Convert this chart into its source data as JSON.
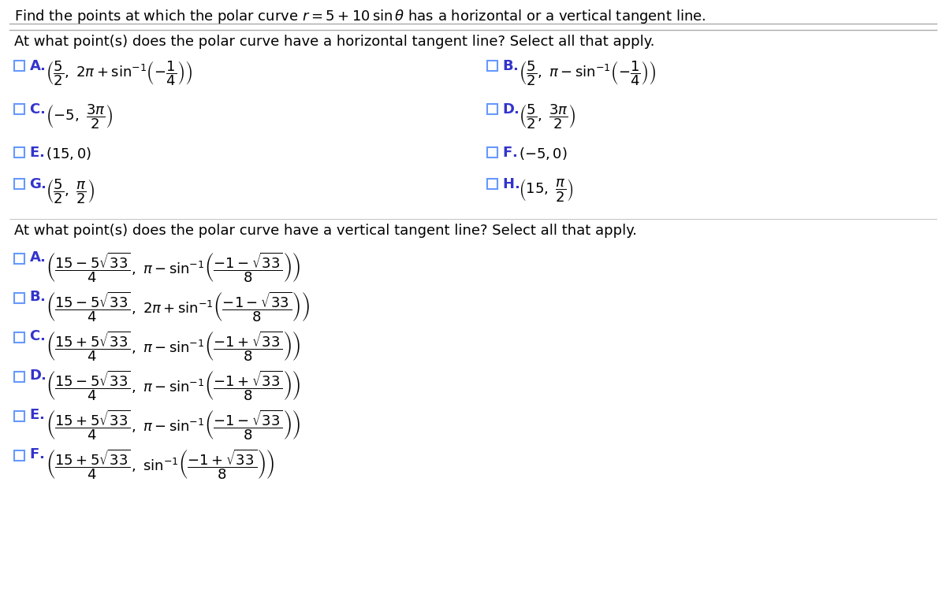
{
  "title_line": "Find the points at which the polar curve r = 5 + 10 sin θ has a horizontal or a vertical tangent line.",
  "horiz_question": "At what point(s) does the polar curve have a horizontal tangent line? Select all that apply.",
  "vert_question": "At what point(s) does the polar curve have a vertical tangent line? Select all that apply.",
  "background_color": "#ffffff",
  "text_color": "#000000",
  "checkbox_color": "#6699ff",
  "label_color": "#3333cc",
  "math_color": "#000000",
  "fig_width": 12.0,
  "fig_height": 7.67
}
